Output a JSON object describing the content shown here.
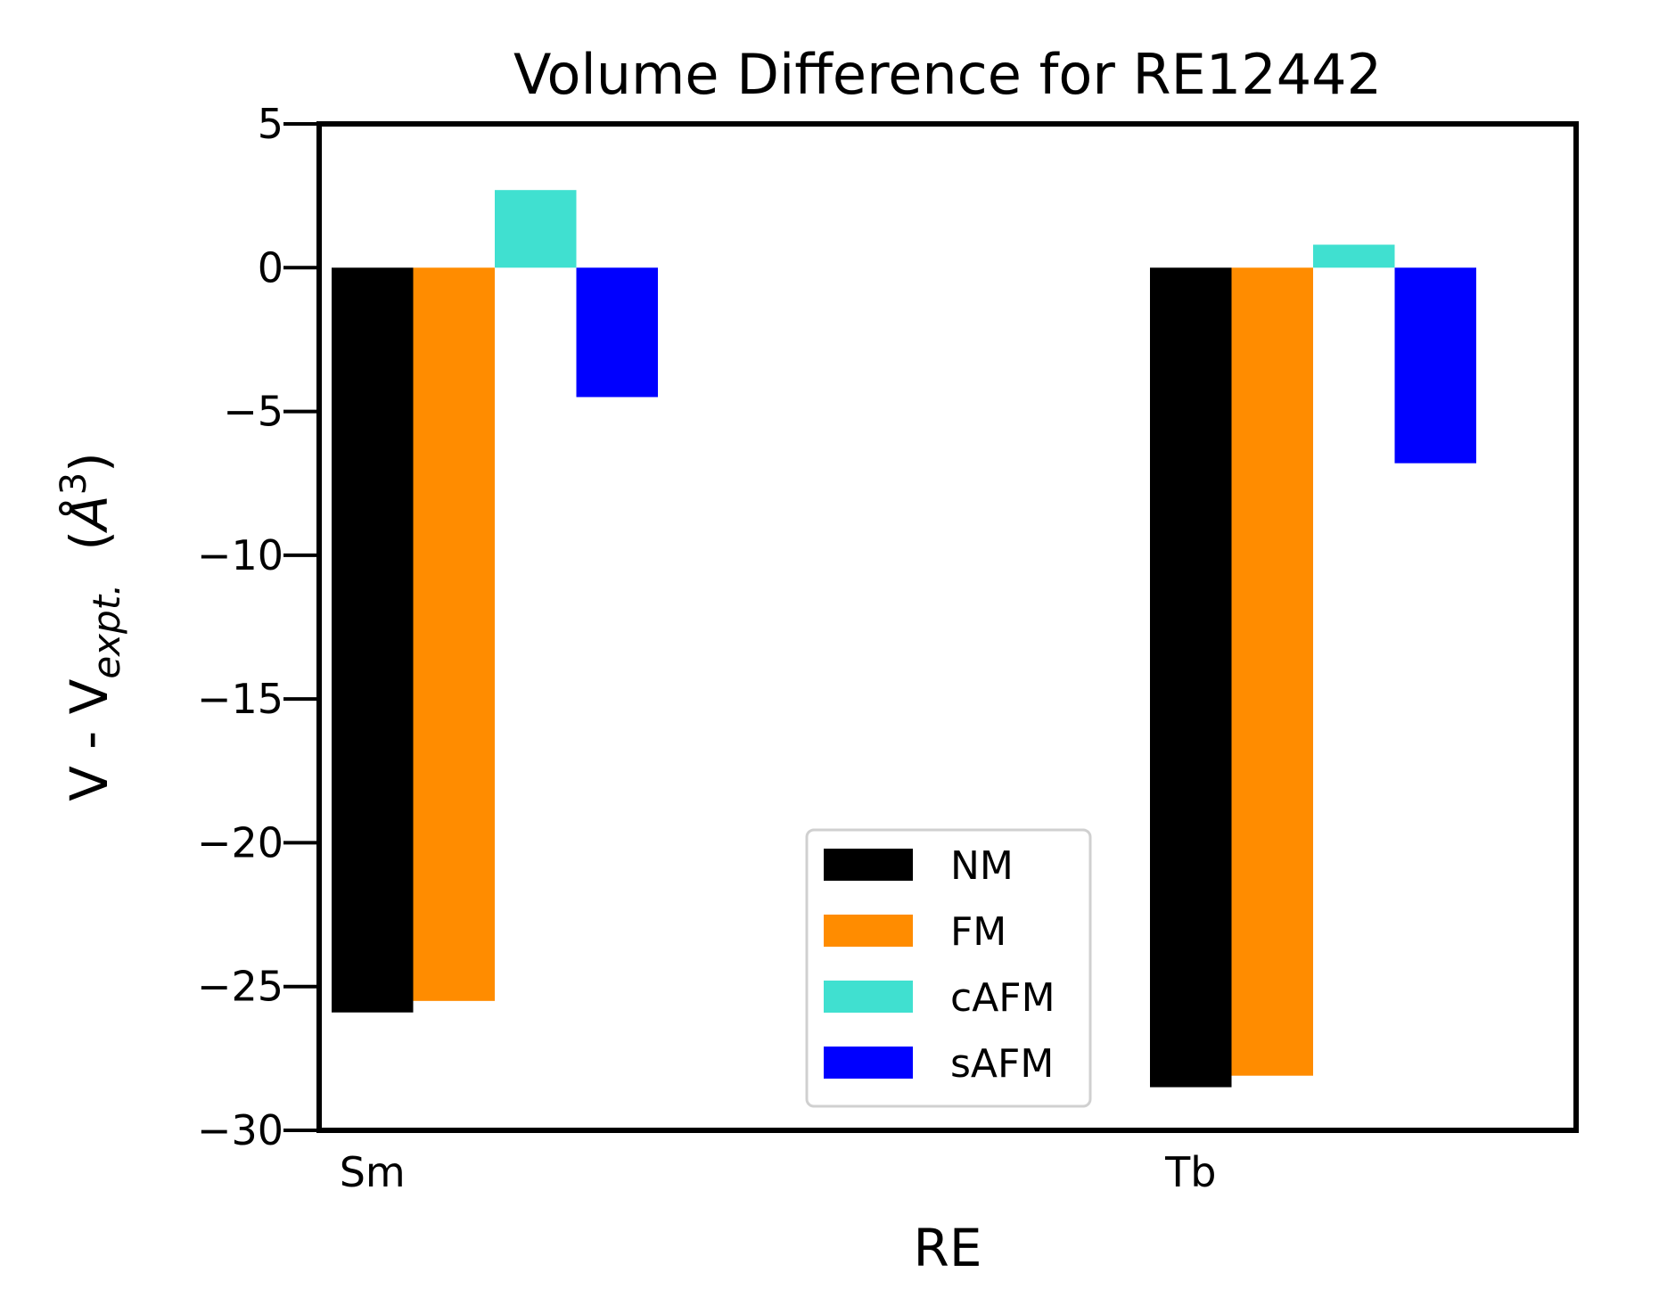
{
  "chart_data": {
    "type": "bar",
    "title": "Volume Difference for RE12442",
    "xlabel": "RE",
    "ylabel": {
      "main": "V - V",
      "subscript": "expt.",
      "unit_open": "  (",
      "unit_symbol": "Å",
      "unit_power": "3",
      "unit_close": ")"
    },
    "categories": [
      "Sm",
      "Tb"
    ],
    "ylim": [
      -30,
      5
    ],
    "yticks": [
      5,
      0,
      -5,
      -10,
      -15,
      -20,
      -25,
      -30
    ],
    "ytick_labels": [
      "5",
      "0",
      "−5",
      "−10",
      "−15",
      "−20",
      "−25",
      "−30"
    ],
    "grid": false,
    "legend_position": "lower-center",
    "series": [
      {
        "name": "NM",
        "color": "#000000",
        "values": [
          -25.9,
          -28.5
        ]
      },
      {
        "name": "FM",
        "color": "#ff8c00",
        "values": [
          -25.5,
          -28.1
        ]
      },
      {
        "name": "cAFM",
        "color": "#40e0d0",
        "values": [
          2.7,
          0.8
        ]
      },
      {
        "name": "sAFM",
        "color": "#0000ff",
        "values": [
          -4.5,
          -6.8
        ]
      }
    ]
  }
}
